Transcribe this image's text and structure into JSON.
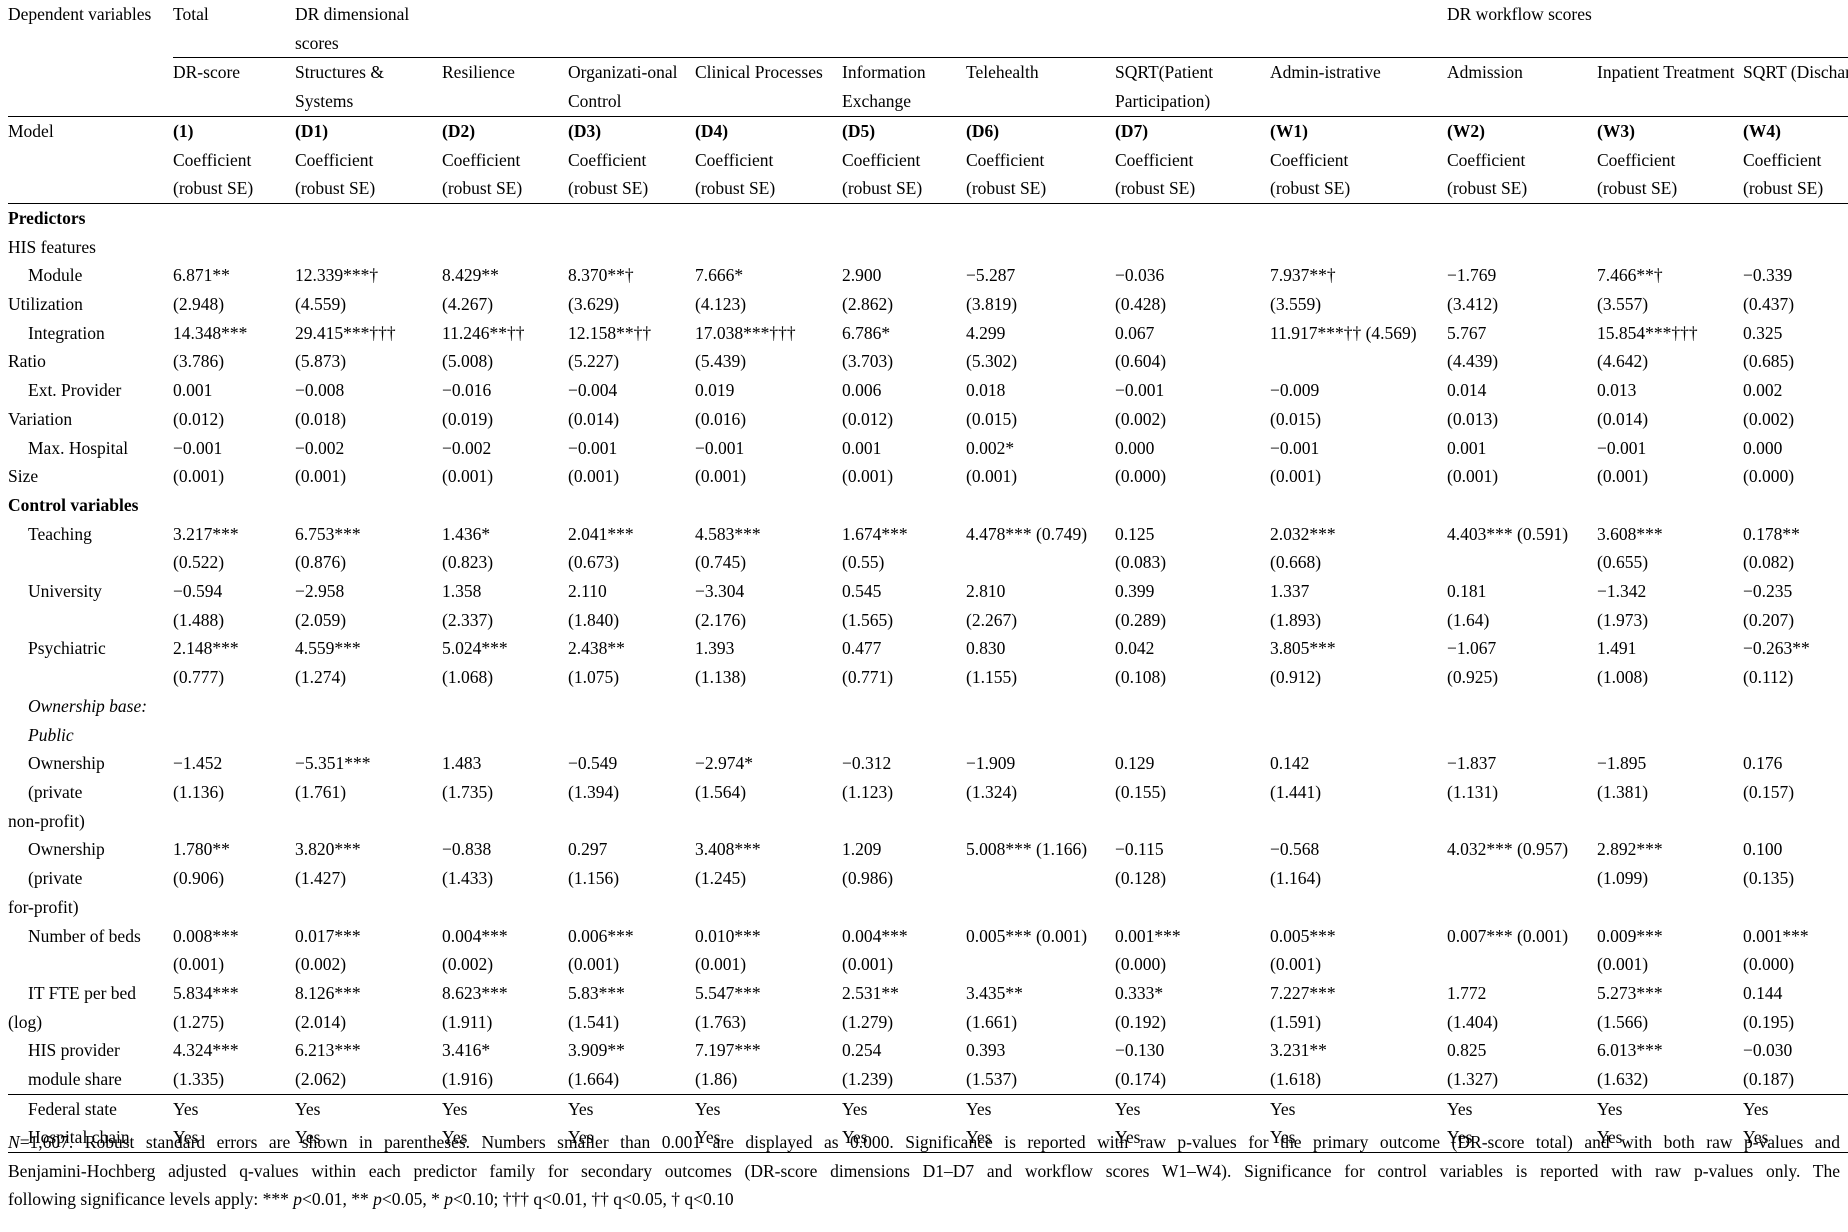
{
  "header": {
    "dependent_variables": "Dependent variables",
    "group_total": "Total",
    "group_dimensional": "DR dimensional scores",
    "group_workflow": "DR workflow scores",
    "columns": [
      {
        "name": "DR-score",
        "model": "(1)"
      },
      {
        "name": "Structures & Systems",
        "model": "(D1)"
      },
      {
        "name": "Resilience",
        "model": "(D2)"
      },
      {
        "name": "Organizati-onal Control",
        "model": "(D3)"
      },
      {
        "name": "Clinical Processes",
        "model": "(D4)"
      },
      {
        "name": "Information Exchange",
        "model": "(D5)"
      },
      {
        "name": "Telehealth",
        "model": "(D6)"
      },
      {
        "name": "SQRT(Patient Participation)",
        "model": "(D7)"
      },
      {
        "name": "Admin-istrative",
        "model": "(W1)"
      },
      {
        "name": "Admission",
        "model": "(W2)"
      },
      {
        "name": "Inpatient Treatment",
        "model": "(W3)"
      },
      {
        "name": "SQRT (Discharge)",
        "model": "(W4)"
      }
    ],
    "model_label": "Model",
    "coef_label": "Coefficient",
    "se_label": "(robust SE)"
  },
  "sections": {
    "predictors": "Predictors",
    "his_features": "HIS features",
    "controls": "Control variables",
    "ownership_base": "Ownership base: Public"
  },
  "rows": [
    {
      "label": [
        "Module",
        "Utilization"
      ],
      "coef": [
        "6.871**",
        "12.339***†",
        "8.429**",
        "8.370**†",
        "7.666*",
        "2.900",
        "−5.287",
        "−0.036",
        "7.937**†",
        "−1.769",
        "7.466**†",
        "−0.339"
      ],
      "se": [
        "(2.948)",
        "(4.559)",
        "(4.267)",
        "(3.629)",
        "(4.123)",
        "(2.862)",
        "(3.819)",
        "(0.428)",
        "(3.559)",
        "(3.412)",
        "(3.557)",
        "(0.437)"
      ]
    },
    {
      "label": [
        "Integration",
        "Ratio"
      ],
      "coef": [
        "14.348***",
        "29.415***†††",
        "11.246**††",
        "12.158**††",
        "17.038***†††",
        "6.786*",
        "4.299",
        "0.067",
        "11.917***†† (4.569)",
        "5.767",
        "15.854***†††",
        "0.325"
      ],
      "se": [
        "(3.786)",
        "(5.873)",
        "(5.008)",
        "(5.227)",
        "(5.439)",
        "(3.703)",
        "(5.302)",
        "(0.604)",
        "",
        "(4.439)",
        "(4.642)",
        "(0.685)"
      ]
    },
    {
      "label": [
        "Ext. Provider",
        "Variation"
      ],
      "coef": [
        "0.001",
        "−0.008",
        "−0.016",
        "−0.004",
        "0.019",
        "0.006",
        "0.018",
        "−0.001",
        "−0.009",
        "0.014",
        "0.013",
        "0.002"
      ],
      "se": [
        "(0.012)",
        "(0.018)",
        "(0.019)",
        "(0.014)",
        "(0.016)",
        "(0.012)",
        "(0.015)",
        "(0.002)",
        "(0.015)",
        "(0.013)",
        "(0.014)",
        "(0.002)"
      ]
    },
    {
      "label": [
        "Max. Hospital",
        "Size"
      ],
      "coef": [
        "−0.001",
        "−0.002",
        "−0.002",
        "−0.001",
        "−0.001",
        "0.001",
        "0.002*",
        "0.000",
        "−0.001",
        "0.001",
        "−0.001",
        "0.000"
      ],
      "se": [
        "(0.001)",
        "(0.001)",
        "(0.001)",
        "(0.001)",
        "(0.001)",
        "(0.001)",
        "(0.001)",
        "(0.000)",
        "(0.001)",
        "(0.001)",
        "(0.001)",
        "(0.000)"
      ]
    }
  ],
  "control_rows": [
    {
      "label": [
        "Teaching",
        ""
      ],
      "coef": [
        "3.217***",
        "6.753***",
        "1.436*",
        "2.041***",
        "4.583***",
        "1.674***",
        "4.478*** (0.749)",
        "0.125",
        "2.032***",
        "4.403*** (0.591)",
        "3.608***",
        "0.178**"
      ],
      "se": [
        "(0.522)",
        "(0.876)",
        "(0.823)",
        "(0.673)",
        "(0.745)",
        "(0.55)",
        "",
        "(0.083)",
        "(0.668)",
        "",
        "(0.655)",
        "(0.082)"
      ]
    },
    {
      "label": [
        "University",
        ""
      ],
      "coef": [
        "−0.594",
        "−2.958",
        "1.358",
        "2.110",
        "−3.304",
        "0.545",
        "2.810",
        "0.399",
        "1.337",
        "0.181",
        "−1.342",
        "−0.235"
      ],
      "se": [
        "(1.488)",
        "(2.059)",
        "(2.337)",
        "(1.840)",
        "(2.176)",
        "(1.565)",
        "(2.267)",
        "(0.289)",
        "(1.893)",
        "(1.64)",
        "(1.973)",
        "(0.207)"
      ]
    },
    {
      "label": [
        "Psychiatric",
        ""
      ],
      "coef": [
        "2.148***",
        "4.559***",
        "5.024***",
        "2.438**",
        "1.393",
        "0.477",
        "0.830",
        "0.042",
        "3.805***",
        "−1.067",
        "1.491",
        "−0.263**"
      ],
      "se": [
        "(0.777)",
        "(1.274)",
        "(1.068)",
        "(1.075)",
        "(1.138)",
        "(0.771)",
        "(1.155)",
        "(0.108)",
        "(0.912)",
        "(0.925)",
        "(1.008)",
        "(0.112)"
      ]
    }
  ],
  "ownership_rows": [
    {
      "label": [
        "Ownership",
        "(private",
        "non-profit)"
      ],
      "coef": [
        "−1.452",
        "−5.351***",
        "1.483",
        "−0.549",
        "−2.974*",
        "−0.312",
        "−1.909",
        "0.129",
        "0.142",
        "−1.837",
        "−1.895",
        "0.176"
      ],
      "se": [
        "(1.136)",
        "(1.761)",
        "(1.735)",
        "(1.394)",
        "(1.564)",
        "(1.123)",
        "(1.324)",
        "(0.155)",
        "(1.441)",
        "(1.131)",
        "(1.381)",
        "(0.157)"
      ]
    },
    {
      "label": [
        "Ownership",
        "(private",
        "for-profit)"
      ],
      "coef": [
        "1.780**",
        "3.820***",
        "−0.838",
        "0.297",
        "3.408***",
        "1.209",
        "5.008*** (1.166)",
        "−0.115",
        "−0.568",
        "4.032*** (0.957)",
        "2.892***",
        "0.100"
      ],
      "se": [
        "(0.906)",
        "(1.427)",
        "(1.433)",
        "(1.156)",
        "(1.245)",
        "(0.986)",
        "",
        "(0.128)",
        "(1.164)",
        "",
        "(1.099)",
        "(0.135)"
      ]
    }
  ],
  "tail_rows": [
    {
      "label": [
        "Number of beds",
        ""
      ],
      "coef": [
        "0.008***",
        "0.017***",
        "0.004***",
        "0.006***",
        "0.010***",
        "0.004***",
        "0.005*** (0.001)",
        "0.001***",
        "0.005***",
        "0.007*** (0.001)",
        "0.009***",
        "0.001***"
      ],
      "se": [
        "(0.001)",
        "(0.002)",
        "(0.002)",
        "(0.001)",
        "(0.001)",
        "(0.001)",
        "",
        "(0.000)",
        "(0.001)",
        "",
        "(0.001)",
        "(0.000)"
      ]
    },
    {
      "label": [
        "IT FTE per bed",
        "(log)"
      ],
      "coef": [
        "5.834***",
        "8.126***",
        "8.623***",
        "5.83***",
        "5.547***",
        "2.531**",
        "3.435**",
        "0.333*",
        "7.227***",
        "1.772",
        "5.273***",
        "0.144"
      ],
      "se": [
        "(1.275)",
        "(2.014)",
        "(1.911)",
        "(1.541)",
        "(1.763)",
        "(1.279)",
        "(1.661)",
        "(0.192)",
        "(1.591)",
        "(1.404)",
        "(1.566)",
        "(0.195)"
      ]
    },
    {
      "label": [
        "HIS provider",
        "module share"
      ],
      "coef": [
        "4.324***",
        "6.213***",
        "3.416*",
        "3.909**",
        "7.197***",
        "0.254",
        "0.393",
        "−0.130",
        "3.231**",
        "0.825",
        "6.013***",
        "−0.030"
      ],
      "se": [
        "(1.335)",
        "(2.062)",
        "(1.916)",
        "(1.664)",
        "(1.86)",
        "(1.239)",
        "(1.537)",
        "(0.174)",
        "(1.618)",
        "(1.327)",
        "(1.632)",
        "(0.187)"
      ]
    }
  ],
  "fixed_effects": [
    {
      "label": "Federal state",
      "values": [
        "Yes",
        "Yes",
        "Yes",
        "Yes",
        "Yes",
        "Yes",
        "Yes",
        "Yes",
        "Yes",
        "Yes",
        "Yes",
        "Yes"
      ]
    },
    {
      "label": "Hospital chain",
      "values": [
        "Yes",
        "Yes",
        "Yes",
        "Yes",
        "Yes",
        "Yes",
        "Yes",
        "Yes",
        "Yes",
        "Yes",
        "Yes",
        "Yes"
      ]
    }
  ],
  "note": {
    "n_label": "N",
    "n_value": "=1,607.",
    "line1": " Robust standard errors are shown in parentheses. Numbers smaller than 0.001 are displayed as 0.000. Significance is reported with raw p-values for the primary outcome (DR-score total) and with both raw p-values and",
    "line2": "Benjamini-Hochberg adjusted q-values within each predictor family for secondary outcomes (DR-score dimensions D1–D7 and workflow scores W1–W4). Significance for control variables is reported with raw p-values only. The",
    "line3_a": "following significance levels apply: *** ",
    "line3_b": "<0.01, ** ",
    "line3_c": "<0.05, * ",
    "line3_d": "<0.10; ††† q<0.01, †† q<0.05, † q<0.10",
    "p": "p"
  }
}
